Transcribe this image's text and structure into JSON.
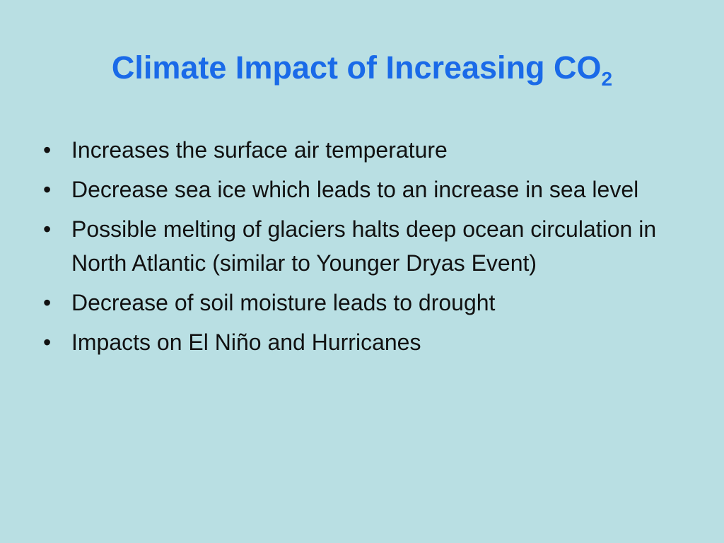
{
  "title": {
    "text": "Climate Impact of Increasing CO",
    "subscript": "2"
  },
  "bullets": [
    "Increases the surface air temperature",
    "Decrease sea ice which leads to an increase in sea level",
    "Possible melting of glaciers halts deep ocean circulation in North Atlantic (similar to Younger Dryas Event)",
    "Decrease of soil moisture leads to drought",
    "Impacts on El Niño and Hurricanes"
  ]
}
